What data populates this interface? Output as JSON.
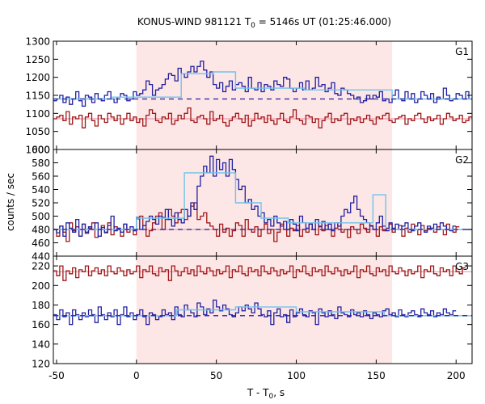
{
  "chart_data": {
    "type": "line",
    "title_main": "KONUS-WIND 981121 T",
    "title_sub": "0",
    "title_rest": " = 5146s UT (01:25:46.000)",
    "xlabel_main": "T - T",
    "xlabel_sub": "0",
    "xlabel_rest": ", s",
    "ylabel": "counts / sec",
    "xlim": [
      -52,
      210
    ],
    "x_ticks": [
      -50,
      0,
      50,
      100,
      150,
      200
    ],
    "highlight_interval": [
      0,
      160
    ],
    "colors": {
      "highlight": "#fde6e6",
      "series_blue": "#2020a0",
      "series_red": "#a01818",
      "fit_cyan": "#6fc4ea",
      "fit_pink": "#f09ab0",
      "bg_dash": "#2020a0"
    },
    "panels": [
      {
        "label": "G1",
        "ylim": [
          1000,
          1300
        ],
        "y_ticks": [
          1000,
          1050,
          1100,
          1150,
          1200,
          1250,
          1300
        ],
        "bg_level": 1140,
        "blue_fit": [
          [
            -52,
            1140
          ],
          [
            -15,
            1140
          ],
          [
            -15,
            1145
          ],
          [
            28,
            1145
          ],
          [
            28,
            1210
          ],
          [
            48,
            1210
          ],
          [
            48,
            1215
          ],
          [
            62,
            1215
          ],
          [
            62,
            1170
          ],
          [
            105,
            1170
          ],
          [
            105,
            1165
          ],
          [
            160,
            1165
          ],
          [
            160,
            1140
          ],
          [
            210,
            1140
          ]
        ],
        "red_fit": [
          [
            -52,
            1085
          ],
          [
            210,
            1085
          ]
        ],
        "blue": [
          1135,
          1140,
          1150,
          1130,
          1145,
          1125,
          1140,
          1160,
          1135,
          1120,
          1150,
          1145,
          1130,
          1155,
          1140,
          1135,
          1150,
          1160,
          1140,
          1130,
          1145,
          1155,
          1150,
          1135,
          1140,
          1160,
          1150,
          1155,
          1165,
          1190,
          1180,
          1150,
          1165,
          1170,
          1180,
          1195,
          1210,
          1205,
          1190,
          1225,
          1210,
          1200,
          1215,
          1230,
          1215,
          1230,
          1245,
          1220,
          1200,
          1215,
          1180,
          1170,
          1185,
          1160,
          1175,
          1190,
          1165,
          1180,
          1185,
          1175,
          1160,
          1200,
          1170,
          1165,
          1185,
          1160,
          1180,
          1175,
          1165,
          1190,
          1180,
          1175,
          1200,
          1195,
          1170,
          1160,
          1170,
          1185,
          1165,
          1190,
          1165,
          1170,
          1200,
          1175,
          1180,
          1160,
          1170,
          1185,
          1155,
          1150,
          1170,
          1165,
          1155,
          1150,
          1140,
          1145,
          1130,
          1135,
          1150,
          1140,
          1150,
          1145,
          1160,
          1135,
          1140,
          1130,
          1150,
          1165,
          1140,
          1135,
          1160,
          1140,
          1155,
          1130,
          1140,
          1160,
          1150,
          1140,
          1155,
          1130,
          1145,
          1140,
          1170,
          1150,
          1135,
          1140,
          1155,
          1150,
          1140,
          1160,
          1140
        ],
        "red": [
          1085,
          1090,
          1095,
          1080,
          1105,
          1070,
          1090,
          1085,
          1095,
          1060,
          1090,
          1100,
          1080,
          1065,
          1095,
          1085,
          1075,
          1100,
          1090,
          1080,
          1095,
          1070,
          1085,
          1100,
          1080,
          1090,
          1075,
          1085,
          1065,
          1095,
          1110,
          1100,
          1080,
          1075,
          1090,
          1085,
          1100,
          1070,
          1080,
          1095,
          1085,
          1100,
          1115,
          1080,
          1075,
          1090,
          1095,
          1085,
          1070,
          1105,
          1080,
          1085,
          1095,
          1075,
          1065,
          1080,
          1090,
          1100,
          1085,
          1075,
          1095,
          1065,
          1080,
          1100,
          1085,
          1090,
          1075,
          1095,
          1080,
          1070,
          1085,
          1100,
          1080,
          1075,
          1090,
          1110,
          1085,
          1080,
          1070,
          1095,
          1090,
          1075,
          1085,
          1060,
          1080,
          1090,
          1100,
          1075,
          1085,
          1080,
          1095,
          1100,
          1070,
          1085,
          1080,
          1090,
          1075,
          1085,
          1095,
          1080,
          1070,
          1090,
          1085,
          1095,
          1100,
          1080,
          1075,
          1085,
          1090,
          1095,
          1070,
          1085,
          1080,
          1095,
          1100,
          1085,
          1075,
          1090,
          1080,
          1085,
          1095,
          1070,
          1085,
          1100,
          1090,
          1080,
          1085,
          1095,
          1075,
          1080,
          1090,
          1100,
          1085,
          1080
        ]
      },
      {
        "label": "G2",
        "ylim": [
          440,
          600
        ],
        "y_ticks": [
          440,
          460,
          480,
          500,
          520,
          540,
          560,
          580,
          600
        ],
        "bg_level": 480,
        "blue_fit": [
          [
            -52,
            480
          ],
          [
            0,
            480
          ],
          [
            0,
            497
          ],
          [
            30,
            497
          ],
          [
            30,
            565
          ],
          [
            62,
            565
          ],
          [
            62,
            520
          ],
          [
            78,
            520
          ],
          [
            78,
            497
          ],
          [
            95,
            497
          ],
          [
            95,
            490
          ],
          [
            148,
            490
          ],
          [
            148,
            532
          ],
          [
            156,
            532
          ],
          [
            156,
            480
          ],
          [
            210,
            480
          ]
        ],
        "red_fit": [
          [
            -52,
            480
          ],
          [
            210,
            480
          ]
        ],
        "blue": [
          480,
          475,
          485,
          470,
          490,
          482,
          476,
          495,
          470,
          488,
          476,
          484,
          480,
          490,
          470,
          483,
          475,
          486,
          500,
          478,
          482,
          476,
          488,
          480,
          484,
          478,
          498,
          480,
          486,
          492,
          500,
          495,
          488,
          500,
          498,
          510,
          495,
          485,
          505,
          495,
          490,
          510,
          500,
          520,
          510,
          545,
          560,
          575,
          565,
          590,
          560,
          585,
          570,
          580,
          560,
          585,
          570,
          555,
          540,
          545,
          520,
          525,
          510,
          515,
          500,
          505,
          490,
          495,
          485,
          500,
          490,
          485,
          492,
          480,
          495,
          488,
          478,
          500,
          490,
          482,
          488,
          480,
          495,
          485,
          492,
          480,
          488,
          478,
          490,
          485,
          500,
          510,
          505,
          520,
          530,
          510,
          500,
          495,
          490,
          485,
          480,
          490,
          500,
          485,
          478,
          490,
          482,
          488,
          480,
          485,
          490,
          480,
          478,
          485,
          490,
          480,
          476,
          485,
          482,
          488,
          480,
          490,
          485,
          480,
          478,
          485
        ],
        "red": [
          480,
          470,
          485,
          476,
          462,
          490,
          478,
          484,
          470,
          488,
          474,
          482,
          490,
          468,
          480,
          486,
          476,
          490,
          472,
          484,
          480,
          470,
          488,
          476,
          480,
          472,
          496,
          500,
          486,
          470,
          478,
          490,
          500,
          505,
          480,
          495,
          510,
          500,
          490,
          505,
          510,
          495,
          500,
          515,
          520,
          495,
          500,
          505,
          490,
          485,
          480,
          470,
          488,
          476,
          482,
          470,
          478,
          490,
          486,
          470,
          495,
          480,
          476,
          484,
          470,
          480,
          488,
          474,
          480,
          462,
          476,
          488,
          480,
          470,
          482,
          478,
          486,
          470,
          480,
          476,
          488,
          480,
          472,
          484,
          478,
          486,
          480,
          470,
          482,
          490,
          476,
          480,
          468,
          484,
          480,
          474,
          488,
          482,
          476,
          486,
          480,
          470,
          484,
          478,
          482,
          488,
          476,
          480,
          486,
          470,
          482,
          476,
          488,
          480,
          472,
          486,
          478,
          482,
          480,
          476,
          484,
          480,
          472,
          488,
          480,
          476,
          484
        ]
      },
      {
        "label": "G3",
        "ylim": [
          120,
          230
        ],
        "y_ticks": [
          120,
          140,
          160,
          180,
          200,
          220
        ],
        "bg_level": 169,
        "blue_fit": [
          [
            -52,
            169
          ],
          [
            25,
            169
          ],
          [
            25,
            175
          ],
          [
            62,
            175
          ],
          [
            62,
            178
          ],
          [
            100,
            178
          ],
          [
            100,
            173
          ],
          [
            155,
            173
          ],
          [
            155,
            169
          ],
          [
            210,
            169
          ]
        ],
        "red_fit": [
          [
            -52,
            214
          ],
          [
            210,
            214
          ]
        ],
        "blue": [
          170,
          165,
          175,
          168,
          172,
          160,
          175,
          170,
          165,
          172,
          168,
          175,
          170,
          162,
          178,
          170,
          165,
          172,
          168,
          175,
          160,
          170,
          178,
          168,
          172,
          165,
          170,
          175,
          168,
          160,
          172,
          170,
          165,
          168,
          175,
          170,
          172,
          165,
          178,
          170,
          168,
          180,
          175,
          172,
          168,
          182,
          178,
          170,
          176,
          172,
          185,
          178,
          174,
          180,
          176,
          170,
          168,
          172,
          178,
          174,
          180,
          176,
          172,
          182,
          176,
          170,
          168,
          174,
          160,
          172,
          176,
          168,
          170,
          162,
          175,
          168,
          172,
          176,
          170,
          168,
          174,
          172,
          160,
          176,
          172,
          168,
          174,
          170,
          166,
          178,
          172,
          170,
          168,
          175,
          170,
          172,
          168,
          174,
          170,
          166,
          172,
          170,
          168,
          174,
          176,
          170,
          172,
          168,
          175,
          170,
          168,
          172,
          174,
          170,
          168,
          176,
          172,
          170,
          174,
          168,
          172,
          170,
          176,
          172,
          170,
          174
        ],
        "red": [
          215,
          210,
          220,
          205,
          215,
          212,
          218,
          208,
          216,
          214,
          220,
          210,
          215,
          218,
          212,
          216,
          210,
          220,
          214,
          212,
          218,
          215,
          210,
          216,
          212,
          214,
          220,
          208,
          216,
          214,
          220,
          212,
          210,
          218,
          214,
          216,
          205,
          220,
          215,
          210,
          214,
          218,
          212,
          216,
          210,
          220,
          214,
          212,
          218,
          215,
          210,
          216,
          212,
          214,
          220,
          208,
          216,
          214,
          220,
          212,
          210,
          218,
          214,
          216,
          210,
          220,
          214,
          212,
          218,
          215,
          210,
          216,
          212,
          214,
          220,
          208,
          216,
          214,
          220,
          212,
          210,
          218,
          214,
          216,
          210,
          220,
          214,
          212,
          218,
          215,
          210,
          216,
          212,
          214,
          220,
          208,
          216,
          214,
          220,
          212,
          210,
          218,
          214,
          216,
          210,
          220,
          214,
          212,
          218,
          215,
          210,
          216,
          212,
          214,
          220,
          208,
          216,
          214,
          220,
          212,
          210,
          218,
          214,
          216,
          210,
          220,
          214,
          212,
          218
        ]
      }
    ]
  }
}
